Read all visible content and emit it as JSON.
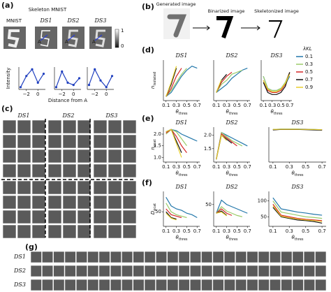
{
  "figure": {
    "panel_labels": [
      "(a)",
      "(b)",
      "(c)",
      "(d)",
      "(e)",
      "(f)",
      "(g)"
    ],
    "a": {
      "titles": [
        "MNIST",
        "Skeleton MNIST",
        "DS1",
        "DS2",
        "DS3"
      ],
      "point_label": "A",
      "colorbar_ticks": [
        1,
        0
      ]
    },
    "b": {
      "steps": [
        "Generated image",
        "Binarized image",
        "Skeletonized image"
      ]
    },
    "c": {
      "columns": [
        "DS1",
        "DS2",
        "DS3"
      ]
    },
    "g": {
      "rows": [
        "DS1",
        "DS2",
        "DS3"
      ]
    }
  },
  "chart_data": [
    {
      "type": "line",
      "markers": true,
      "y_label": "Intensity",
      "x": [
        -3,
        -2,
        -1,
        0,
        1
      ],
      "xlim": [
        -3.3,
        1.3
      ],
      "ylim": [
        0,
        1
      ],
      "xticks": [
        {
          "value": -2,
          "label": "−2"
        },
        0
      ],
      "yticks": [],
      "series": [
        {
          "color": "#1f3fbf",
          "values": [
            0.1,
            0.6,
            0.9,
            0.3,
            0.7
          ]
        }
      ]
    },
    {
      "type": "line",
      "markers": true,
      "x_label": "Distance from A",
      "x": [
        -3,
        -2,
        -1,
        0,
        1
      ],
      "xlim": [
        -3.3,
        1.3
      ],
      "ylim": [
        0,
        1
      ],
      "xticks": [
        {
          "value": -2,
          "label": "−2"
        },
        0
      ],
      "yticks": [],
      "series": [
        {
          "color": "#1f3fbf",
          "values": [
            0.1,
            0.8,
            0.3,
            0.2,
            0.5
          ]
        }
      ]
    },
    {
      "type": "line",
      "markers": true,
      "x": [
        -3,
        -2,
        -1,
        0,
        1
      ],
      "xlim": [
        -3.3,
        1.3
      ],
      "ylim": [
        0,
        1
      ],
      "xticks": [
        {
          "value": -2,
          "label": "−2"
        },
        0
      ],
      "yticks": [],
      "series": [
        {
          "color": "#1f3fbf",
          "values": [
            0.2,
            0.9,
            0.4,
            0.1,
            0.6
          ]
        }
      ]
    },
    {
      "type": "line",
      "title": "DS1",
      "y_label": {
        "main": "n",
        "sub": "isolated"
      },
      "x_label": {
        "main": "θ",
        "sub": "thres"
      },
      "x": [
        0.1,
        0.2,
        0.3,
        0.4,
        0.5,
        0.6,
        0.7
      ],
      "xlim": [
        0.05,
        0.75
      ],
      "ylim": [
        0,
        10
      ],
      "xticks": [
        0.1,
        0.3,
        0.5,
        0.7
      ],
      "yticks": [],
      "series": [
        {
          "name": "0.1",
          "color": "#2277aa",
          "values": [
            1,
            2,
            4,
            6,
            7.5,
            8.5,
            8
          ]
        },
        {
          "name": "0.3",
          "color": "#9ccc6a",
          "values": [
            1,
            2.5,
            4.5,
            6.5,
            8,
            null,
            null
          ]
        },
        {
          "name": "0.5",
          "color": "#d62728",
          "values": [
            1,
            3,
            6,
            8,
            null,
            null,
            null
          ]
        },
        {
          "name": "0.7",
          "color": "#111111",
          "values": [
            1,
            4,
            8,
            null,
            null,
            null,
            null
          ]
        },
        {
          "name": "0.9",
          "color": "#e8cf2e",
          "values": [
            1,
            4.5,
            8.5,
            null,
            null,
            null,
            null
          ]
        }
      ]
    },
    {
      "type": "line",
      "title": "DS2",
      "x_label": {
        "main": "θ",
        "sub": "thres"
      },
      "x": [
        0.1,
        0.2,
        0.3,
        0.4,
        0.5,
        0.6,
        0.7
      ],
      "xlim": [
        0.05,
        0.75
      ],
      "ylim": [
        0,
        10
      ],
      "xticks": [
        0.1,
        0.3,
        0.5,
        0.7
      ],
      "yticks": [],
      "series": [
        {
          "name": "0.1",
          "color": "#2277aa",
          "values": [
            2,
            3,
            4,
            5.5,
            6.5,
            7.5,
            8
          ]
        },
        {
          "name": "0.3",
          "color": "#9ccc6a",
          "values": [
            2,
            4,
            5,
            6.5,
            7,
            7.5,
            null
          ]
        },
        {
          "name": "0.5",
          "color": "#d62728",
          "values": [
            2,
            4.5,
            6,
            7,
            null,
            null,
            null
          ]
        },
        {
          "name": "0.7",
          "color": "#111111",
          "values": [
            2,
            5,
            6.5,
            null,
            null,
            null,
            null
          ]
        },
        {
          "name": "0.9",
          "color": "#e8cf2e",
          "values": [
            2,
            5.2,
            null,
            null,
            null,
            null,
            null
          ]
        }
      ]
    },
    {
      "type": "line",
      "title": "DS3",
      "x_label": {
        "main": "θ",
        "sub": "thres"
      },
      "legend": "outside-right",
      "legend_title": "λKL",
      "x": [
        0.1,
        0.2,
        0.3,
        0.4,
        0.5,
        0.6,
        0.7
      ],
      "xlim": [
        0.05,
        0.75
      ],
      "ylim": [
        0,
        10
      ],
      "xticks": [
        0.1,
        0.3,
        0.5,
        0.7
      ],
      "yticks": [],
      "series": [
        {
          "name": "0.1",
          "color": "#2277aa",
          "values": [
            6,
            3,
            2.5,
            2.5,
            3,
            4,
            6
          ]
        },
        {
          "name": "0.3",
          "color": "#9ccc6a",
          "values": [
            6,
            3,
            2.5,
            2.5,
            3,
            4.5,
            7
          ]
        },
        {
          "name": "0.5",
          "color": "#d62728",
          "values": [
            5,
            2.5,
            2,
            2,
            2.5,
            4,
            7
          ]
        },
        {
          "name": "0.7",
          "color": "#111111",
          "values": [
            4.5,
            2,
            1.5,
            1.5,
            2,
            3.5,
            7
          ]
        },
        {
          "name": "0.9",
          "color": "#e8cf2e",
          "values": [
            5,
            2.8,
            2.2,
            2.2,
            2.8,
            4.2,
            6.5
          ]
        }
      ]
    },
    {
      "type": "line",
      "title": "DS1",
      "y_label": {
        "main": "n",
        "sub": "ecat"
      },
      "x_label": {
        "main": "θ",
        "sub": "thres"
      },
      "x": [
        0.1,
        0.2,
        0.3,
        0.4,
        0.5,
        0.6,
        0.7
      ],
      "xlim": [
        0.05,
        0.75
      ],
      "ylim": [
        0.8,
        2.3
      ],
      "xticks": [
        0.1,
        0.3,
        0.5,
        0.7
      ],
      "yticks": [
        {
          "value": 1,
          "label": "1.0"
        },
        1.5,
        {
          "value": 2,
          "label": "2.0"
        }
      ],
      "series": [
        {
          "color": "#2277aa",
          "values": [
            2.1,
            2.2,
            2.15,
            2.0,
            1.9,
            1.8,
            1.7
          ]
        },
        {
          "color": "#9ccc6a",
          "values": [
            2.0,
            2.2,
            2.1,
            1.8,
            1.5,
            null,
            null
          ]
        },
        {
          "color": "#d62728",
          "values": [
            2.05,
            2.2,
            1.9,
            1.5,
            1.2,
            null,
            null
          ]
        },
        {
          "color": "#111111",
          "values": [
            2.1,
            2.2,
            1.7,
            1.2,
            null,
            null,
            null
          ]
        },
        {
          "color": "#e8cf2e",
          "values": [
            2.1,
            2.2,
            1.6,
            1.0,
            null,
            null,
            null
          ]
        }
      ]
    },
    {
      "type": "line",
      "title": "DS2",
      "x_label": {
        "main": "θ",
        "sub": "thres"
      },
      "x": [
        0.1,
        0.2,
        0.3,
        0.4,
        0.5,
        0.6,
        0.7
      ],
      "xlim": [
        0.05,
        0.75
      ],
      "ylim": [
        1.0,
        2.3
      ],
      "xticks": [
        0.1,
        0.3,
        0.5,
        0.7
      ],
      "yticks": [
        1.5,
        {
          "value": 2,
          "label": "2.0"
        }
      ],
      "series": [
        {
          "color": "#2277aa",
          "values": [
            1.1,
            2.1,
            2.0,
            1.9,
            1.8,
            1.7,
            1.6
          ]
        },
        {
          "color": "#9ccc6a",
          "values": [
            1.1,
            2.1,
            1.95,
            1.8,
            1.7,
            1.6,
            null
          ]
        },
        {
          "color": "#d62728",
          "values": [
            1.1,
            2.05,
            1.9,
            1.75,
            1.6,
            null,
            null
          ]
        },
        {
          "color": "#111111",
          "values": [
            1.1,
            2.0,
            1.85,
            1.7,
            null,
            null,
            null
          ]
        },
        {
          "color": "#e8cf2e",
          "values": [
            1.1,
            2.0,
            1.8,
            null,
            null,
            null,
            null
          ]
        }
      ]
    },
    {
      "type": "line",
      "title": "DS3",
      "x_label": {
        "main": "θ",
        "sub": "thres"
      },
      "x": [
        0.1,
        0.2,
        0.3,
        0.4,
        0.5,
        0.6,
        0.7
      ],
      "xlim": [
        0.05,
        0.75
      ],
      "ylim": [
        0.8,
        2.3
      ],
      "xticks": [
        0.1,
        0.3,
        0.5,
        0.7
      ],
      "yticks": [],
      "series": [
        {
          "color": "#2277aa",
          "values": [
            2.2,
            2.22,
            2.22,
            2.22,
            2.21,
            2.2,
            2.19
          ]
        },
        {
          "color": "#9ccc6a",
          "values": [
            2.2,
            2.21,
            2.21,
            2.21,
            2.2,
            2.2,
            2.18
          ]
        },
        {
          "color": "#d62728",
          "values": [
            2.19,
            2.2,
            2.2,
            2.2,
            2.2,
            2.19,
            2.18
          ]
        },
        {
          "color": "#111111",
          "values": [
            2.18,
            2.2,
            2.2,
            2.2,
            2.19,
            2.18,
            2.17
          ]
        },
        {
          "color": "#e8cf2e",
          "values": [
            2.2,
            2.21,
            2.21,
            2.21,
            2.2,
            2.2,
            2.19
          ]
        }
      ]
    },
    {
      "type": "line",
      "title": "DS1",
      "y_label": {
        "main": "D",
        "sub": "ecat"
      },
      "x_label": {
        "main": "θ",
        "sub": "thres"
      },
      "x": [
        0.1,
        0.2,
        0.3,
        0.4,
        0.5,
        0.6,
        0.7
      ],
      "xlim": [
        0.05,
        0.75
      ],
      "ylim": [
        0,
        120
      ],
      "xticks": [
        0.1,
        0.3,
        0.5,
        0.7
      ],
      "yticks": [
        50
      ],
      "series": [
        {
          "color": "#2277aa",
          "values": [
            100,
            70,
            60,
            55,
            45,
            40,
            30
          ]
        },
        {
          "color": "#9ccc6a",
          "values": [
            80,
            50,
            40,
            35,
            30,
            null,
            null
          ]
        },
        {
          "color": "#d62728",
          "values": [
            60,
            40,
            35,
            30,
            null,
            null,
            null
          ]
        },
        {
          "color": "#111111",
          "values": [
            50,
            30,
            25,
            null,
            null,
            null,
            null
          ]
        },
        {
          "color": "#e8cf2e",
          "values": [
            45,
            28,
            22,
            null,
            null,
            null,
            null
          ]
        }
      ]
    },
    {
      "type": "line",
      "title": "DS2",
      "x_label": {
        "main": "θ",
        "sub": "thres"
      },
      "x": [
        0.1,
        0.2,
        0.3,
        0.4,
        0.5,
        0.6,
        0.7
      ],
      "xlim": [
        0.05,
        0.75
      ],
      "ylim": [
        0,
        80
      ],
      "xticks": [
        0.1,
        0.3,
        0.5,
        0.7
      ],
      "yticks": [
        50
      ],
      "series": [
        {
          "color": "#2277aa",
          "values": [
            30,
            60,
            50,
            45,
            40,
            35,
            30
          ]
        },
        {
          "color": "#9ccc6a",
          "values": [
            30,
            45,
            35,
            30,
            25,
            22,
            null
          ]
        },
        {
          "color": "#d62728",
          "values": [
            30,
            40,
            30,
            25,
            null,
            null,
            null
          ]
        },
        {
          "color": "#111111",
          "values": [
            30,
            35,
            25,
            null,
            null,
            null,
            null
          ]
        },
        {
          "color": "#e8cf2e",
          "values": [
            30,
            33,
            24,
            null,
            null,
            null,
            null
          ]
        }
      ]
    },
    {
      "type": "line",
      "title": "DS3",
      "x_label": {
        "main": "θ",
        "sub": "thres"
      },
      "x": [
        0.1,
        0.2,
        0.3,
        0.4,
        0.5,
        0.6,
        0.7
      ],
      "xlim": [
        0.05,
        0.75
      ],
      "ylim": [
        20,
        130
      ],
      "xticks": [
        0.1,
        0.3,
        0.5,
        0.7
      ],
      "yticks": [
        50,
        100
      ],
      "series": [
        {
          "color": "#2277aa",
          "values": [
            110,
            75,
            70,
            65,
            62,
            58,
            55
          ]
        },
        {
          "color": "#9ccc6a",
          "values": [
            100,
            65,
            60,
            55,
            50,
            48,
            45
          ]
        },
        {
          "color": "#d62728",
          "values": [
            90,
            55,
            50,
            45,
            42,
            40,
            38
          ]
        },
        {
          "color": "#111111",
          "values": [
            80,
            50,
            45,
            40,
            38,
            35,
            30
          ]
        },
        {
          "color": "#e8cf2e",
          "values": [
            85,
            52,
            47,
            43,
            40,
            38,
            35
          ]
        }
      ]
    }
  ]
}
